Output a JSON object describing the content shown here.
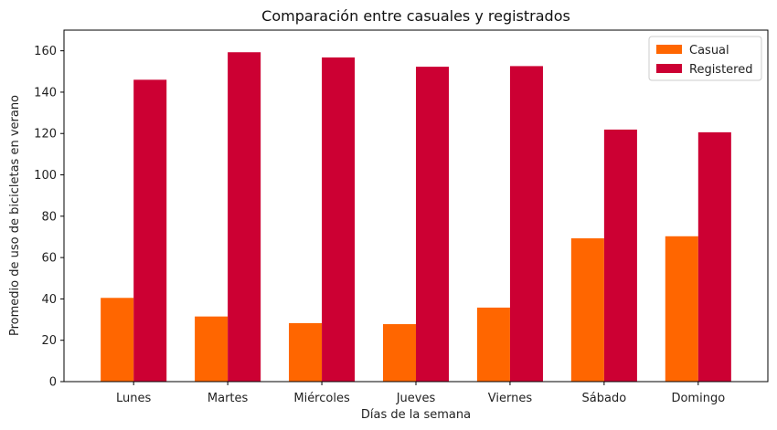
{
  "chart_data": {
    "type": "bar",
    "title": "Comparación entre casuales y registrados",
    "xlabel": "Días de la semana",
    "ylabel": "Promedio de uso de bicicletas en verano",
    "categories": [
      "Lunes",
      "Martes",
      "Miércoles",
      "Jueves",
      "Viernes",
      "Sábado",
      "Domingo"
    ],
    "series": [
      {
        "name": "Casual",
        "color": "#ff6600",
        "values": [
          40.5,
          31.5,
          28.3,
          27.8,
          35.8,
          69.3,
          70.3
        ]
      },
      {
        "name": "Registered",
        "color": "#cc0033",
        "values": [
          146.0,
          159.3,
          156.8,
          152.3,
          152.6,
          121.9,
          120.6
        ]
      }
    ],
    "ylim": [
      0,
      170
    ],
    "yticks": [
      0,
      20,
      40,
      60,
      80,
      100,
      120,
      140,
      160
    ],
    "grid": false,
    "legend_position": "top-right"
  }
}
